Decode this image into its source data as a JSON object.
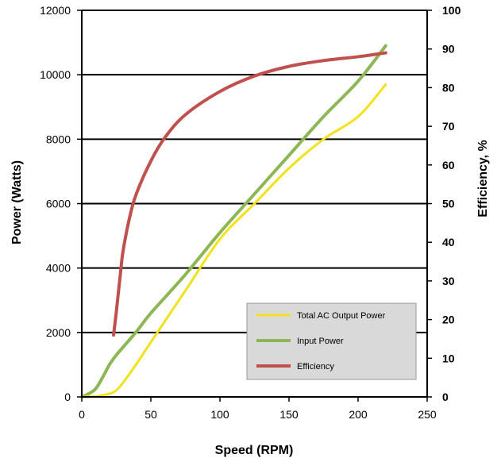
{
  "chart_data": {
    "type": "line",
    "title": "",
    "xlabel": "Speed (RPM)",
    "ylabel": "Power (Watts)",
    "y2label": "Efficiency, %",
    "xlim": [
      0,
      250
    ],
    "ylim": [
      0,
      12000
    ],
    "y2lim": [
      0,
      100
    ],
    "x_ticks": [
      "0",
      "50",
      "100",
      "150",
      "200",
      "250"
    ],
    "y_ticks": [
      "0",
      "2000",
      "4000",
      "6000",
      "8000",
      "10000",
      "12000"
    ],
    "y2_ticks": [
      "0",
      "10",
      "20",
      "30",
      "40",
      "50",
      "60",
      "70",
      "80",
      "90",
      "100"
    ],
    "grid": "horizontal major gridlines",
    "legend_position": "lower-right",
    "series": [
      {
        "name": "Total AC Output Power",
        "axis": "left",
        "color": "#F2E21C",
        "x": [
          0,
          10,
          20,
          25,
          30,
          40,
          50,
          75,
          100,
          125,
          150,
          175,
          200,
          220
        ],
        "y": [
          0,
          20,
          100,
          200,
          450,
          1050,
          1700,
          3300,
          4900,
          6000,
          7100,
          8000,
          8700,
          9700
        ]
      },
      {
        "name": "Input Power",
        "axis": "left",
        "color": "#8DB655",
        "x": [
          0,
          5,
          10,
          15,
          20,
          25,
          30,
          40,
          50,
          75,
          100,
          125,
          150,
          175,
          200,
          220
        ],
        "y": [
          0,
          100,
          250,
          600,
          1000,
          1300,
          1550,
          2050,
          2600,
          3800,
          5100,
          6300,
          7500,
          8700,
          9800,
          10900
        ]
      },
      {
        "name": "Efficiency",
        "axis": "right",
        "color": "#C0504D",
        "x": [
          23,
          25,
          28,
          30,
          35,
          40,
          50,
          60,
          75,
          100,
          125,
          150,
          175,
          200,
          220
        ],
        "y": [
          16,
          22,
          32,
          38,
          47,
          53,
          61,
          67,
          73,
          79,
          83,
          85.5,
          87,
          88,
          89
        ]
      }
    ]
  }
}
